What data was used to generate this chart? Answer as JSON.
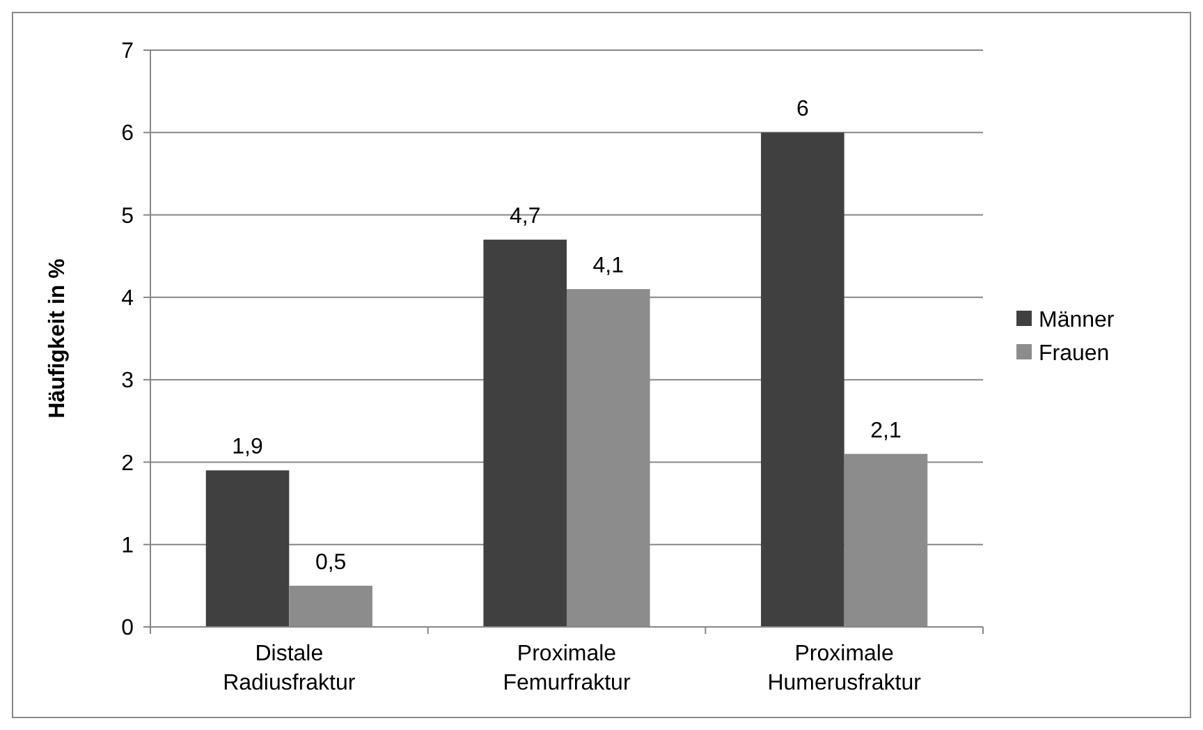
{
  "chart_data": {
    "type": "bar",
    "ylabel": "Häufigkeit in %",
    "categories": [
      "Distale Radiusfraktur",
      "Proximale Femurfraktur",
      "Proximale Humerusfraktur"
    ],
    "series": [
      {
        "name": "Männer",
        "color": "#404040",
        "values": [
          1.9,
          4.7,
          6
        ],
        "value_labels": [
          "1,9",
          "4,7",
          "6"
        ]
      },
      {
        "name": "Frauen",
        "color": "#8c8c8c",
        "values": [
          0.5,
          4.1,
          2.1
        ],
        "value_labels": [
          "0,5",
          "4,1",
          "2,1"
        ]
      }
    ],
    "ylim": [
      0,
      7
    ],
    "yticks": [
      0,
      1,
      2,
      3,
      4,
      5,
      6,
      7
    ],
    "grid": "y",
    "legend": "right"
  }
}
